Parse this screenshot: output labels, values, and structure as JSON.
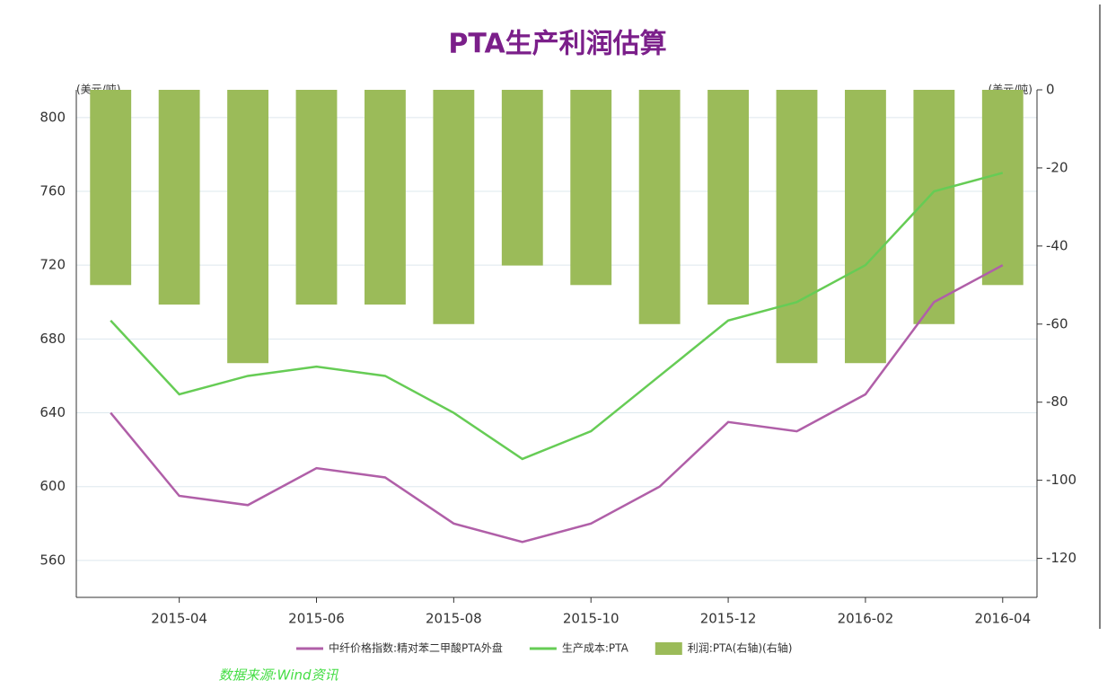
{
  "chart_data": {
    "type": "combo",
    "title": "PTA生产利润估算",
    "y_unit_left": "(美元/吨)",
    "y_unit_right": "(美元/吨)",
    "source": "数据来源:Wind资讯",
    "x": [
      "2015-03",
      "2015-04",
      "2015-05",
      "2015-06",
      "2015-07",
      "2015-08",
      "2015-09",
      "2015-10",
      "2015-11",
      "2015-12",
      "2016-01",
      "2016-02",
      "2016-03",
      "2016-04"
    ],
    "xticks": [
      "2015-04",
      "2015-06",
      "2015-08",
      "2015-10",
      "2015-12",
      "2016-02",
      "2016-04"
    ],
    "ylim": [
      540,
      815
    ],
    "yticks": [
      560,
      600,
      640,
      680,
      720,
      760,
      800
    ],
    "y2lim": [
      -130,
      0
    ],
    "y2ticks": [
      -120,
      -100,
      -80,
      -60,
      -40,
      -20,
      0
    ],
    "grid": true,
    "legend": "bottom",
    "series": [
      {
        "name": "中纤价格指数:精对苯二甲酸PTA外盘",
        "type": "line",
        "color": "#b05fa8",
        "values": [
          640,
          595,
          590,
          610,
          605,
          580,
          570,
          580,
          600,
          635,
          630,
          650,
          700,
          720
        ]
      },
      {
        "name": "生产成本:PTA",
        "type": "line",
        "color": "#66cc55",
        "values": [
          690,
          650,
          660,
          665,
          660,
          640,
          615,
          630,
          660,
          690,
          700,
          720,
          760,
          770
        ]
      },
      {
        "name": "利润:PTA(右轴)(右轴)",
        "type": "bar",
        "axis": "y2",
        "color": "#9bbb59",
        "values": [
          -50,
          -55,
          -70,
          -55,
          -55,
          -60,
          -45,
          -50,
          -60,
          -55,
          -70,
          -70,
          -60,
          -50
        ]
      }
    ]
  }
}
